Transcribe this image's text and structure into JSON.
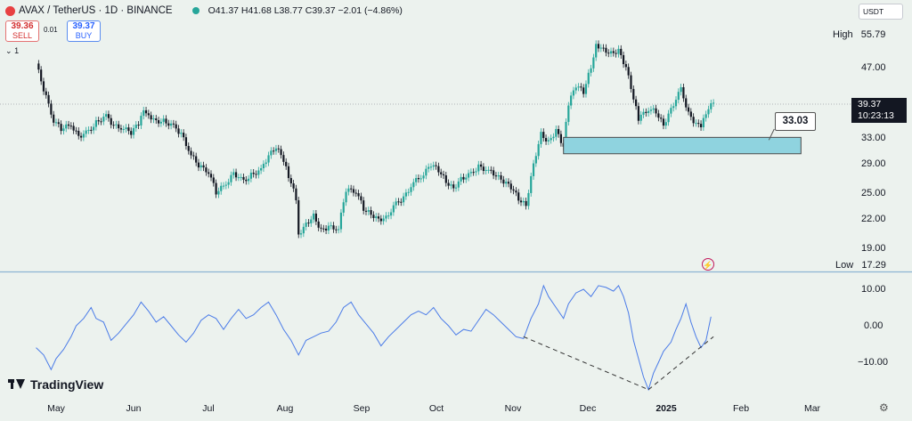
{
  "header": {
    "symbol": "AVAX / TetherUS · 1D · BINANCE",
    "ohlc": "O41.37 H41.68 L38.77 C39.37 −2.01 (−4.86%)",
    "logo": "avax-logo-icon"
  },
  "trade": {
    "sell_price": "39.36",
    "sell_label": "SELL",
    "spread": "0.01",
    "buy_price": "39.37",
    "buy_label": "BUY",
    "indicator_count": "1"
  },
  "currency_label": "USDT",
  "markers": {
    "high_label": "High",
    "high_value": "55.79",
    "low_label": "Low",
    "low_value": "17.29",
    "last_price": "39.37",
    "countdown": "10:23:13",
    "annotation_value": "33.03"
  },
  "branding": {
    "name": "TradingView"
  },
  "chart_data": [
    {
      "type": "candlestick",
      "x_ticks": [
        "May",
        "Jun",
        "Jul",
        "Aug",
        "Sep",
        "Oct",
        "Nov",
        "Dec",
        "2025",
        "Feb",
        "Mar"
      ],
      "y_ticks": [
        "55.79",
        "47.00",
        "33.00",
        "29.00",
        "25.00",
        "22.00",
        "19.00",
        "17.29"
      ],
      "scale": "log",
      "ylim": [
        17.29,
        55.79
      ],
      "colors": {
        "up": "#26a69a",
        "down": "#131722",
        "box": "#8fd3df"
      },
      "close_path": [
        [
          "2024-04-23",
          48.0
        ],
        [
          "2024-04-26",
          42.0
        ],
        [
          "2024-04-30",
          36.0
        ],
        [
          "2024-05-03",
          34.5
        ],
        [
          "2024-05-07",
          35.2
        ],
        [
          "2024-05-10",
          33.2
        ],
        [
          "2024-05-14",
          34.0
        ],
        [
          "2024-05-17",
          35.6
        ],
        [
          "2024-05-21",
          36.8
        ],
        [
          "2024-05-24",
          35.0
        ],
        [
          "2024-05-28",
          34.6
        ],
        [
          "2024-05-31",
          33.8
        ],
        [
          "2024-06-03",
          35.5
        ],
        [
          "2024-06-05",
          38.2
        ],
        [
          "2024-06-07",
          37.0
        ],
        [
          "2024-06-10",
          35.8
        ],
        [
          "2024-06-13",
          35.9
        ],
        [
          "2024-06-17",
          34.9
        ],
        [
          "2024-06-20",
          33.6
        ],
        [
          "2024-06-24",
          30.2
        ],
        [
          "2024-06-27",
          28.6
        ],
        [
          "2024-07-01",
          27.8
        ],
        [
          "2024-07-04",
          25.0
        ],
        [
          "2024-07-08",
          26.1
        ],
        [
          "2024-07-11",
          27.6
        ],
        [
          "2024-07-15",
          26.4
        ],
        [
          "2024-07-18",
          27.3
        ],
        [
          "2024-07-22",
          28.0
        ],
        [
          "2024-07-25",
          30.1
        ],
        [
          "2024-07-28",
          31.4
        ],
        [
          "2024-07-31",
          29.5
        ],
        [
          "2024-08-02",
          27.2
        ],
        [
          "2024-08-05",
          24.2
        ],
        [
          "2024-08-06",
          20.2
        ],
        [
          "2024-08-09",
          21.3
        ],
        [
          "2024-08-12",
          22.2
        ],
        [
          "2024-08-15",
          20.6
        ],
        [
          "2024-08-18",
          21.0
        ],
        [
          "2024-08-22",
          20.8
        ],
        [
          "2024-08-25",
          25.3
        ],
        [
          "2024-08-29",
          25.2
        ],
        [
          "2024-09-01",
          23.0
        ],
        [
          "2024-09-04",
          22.4
        ],
        [
          "2024-09-07",
          21.8
        ],
        [
          "2024-09-10",
          22.0
        ],
        [
          "2024-09-14",
          23.6
        ],
        [
          "2024-09-17",
          24.3
        ],
        [
          "2024-09-21",
          26.3
        ],
        [
          "2024-09-25",
          27.4
        ],
        [
          "2024-09-28",
          28.8
        ],
        [
          "2024-10-01",
          28.0
        ],
        [
          "2024-10-04",
          26.4
        ],
        [
          "2024-10-07",
          25.5
        ],
        [
          "2024-10-10",
          26.8
        ],
        [
          "2024-10-14",
          27.4
        ],
        [
          "2024-10-17",
          28.5
        ],
        [
          "2024-10-21",
          27.9
        ],
        [
          "2024-10-24",
          27.2
        ],
        [
          "2024-10-27",
          26.4
        ],
        [
          "2024-10-30",
          25.7
        ],
        [
          "2024-11-02",
          24.2
        ],
        [
          "2024-11-05",
          23.4
        ],
        [
          "2024-11-08",
          28.8
        ],
        [
          "2024-11-11",
          33.6
        ],
        [
          "2024-11-14",
          32.2
        ],
        [
          "2024-11-17",
          34.2
        ],
        [
          "2024-11-20",
          31.5
        ],
        [
          "2024-11-22",
          39.1
        ],
        [
          "2024-11-25",
          43.0
        ],
        [
          "2024-11-28",
          41.6
        ],
        [
          "2024-12-01",
          47.1
        ],
        [
          "2024-12-03",
          52.9
        ],
        [
          "2024-12-06",
          51.5
        ],
        [
          "2024-12-09",
          50.5
        ],
        [
          "2024-12-12",
          51.2
        ],
        [
          "2024-12-15",
          47.0
        ],
        [
          "2024-12-18",
          40.2
        ],
        [
          "2024-12-20",
          36.3
        ],
        [
          "2024-12-24",
          38.2
        ],
        [
          "2024-12-27",
          37.6
        ],
        [
          "2024-12-30",
          35.1
        ],
        [
          "2025-01-02",
          38.1
        ],
        [
          "2025-01-06",
          42.1
        ],
        [
          "2025-01-09",
          37.2
        ],
        [
          "2025-01-12",
          35.3
        ],
        [
          "2025-01-14",
          34.8
        ],
        [
          "2025-01-17",
          38.4
        ],
        [
          "2025-01-19",
          39.37
        ]
      ],
      "sr_zone": {
        "x_start": "2024-11-20",
        "x_end": "2025-02-23",
        "low": 30.4,
        "high": 33.03
      }
    },
    {
      "type": "line",
      "color": "#4a7be8",
      "x_ticks": [
        "May",
        "Jun",
        "Jul",
        "Aug",
        "Sep",
        "Oct",
        "Nov",
        "Dec",
        "2025",
        "Feb",
        "Mar"
      ],
      "y_ticks": [
        "10.00",
        "0.00",
        "−10.00"
      ],
      "ylim": [
        -19,
        13
      ],
      "series": [
        {
          "values": [
            [
              "2024-04-23",
              -6.0
            ],
            [
              "2024-04-26",
              -8.0
            ],
            [
              "2024-04-29",
              -12.0
            ],
            [
              "2024-05-01",
              -9.0
            ],
            [
              "2024-05-04",
              -6.5
            ],
            [
              "2024-05-07",
              -3.0
            ],
            [
              "2024-05-09",
              0.0
            ],
            [
              "2024-05-12",
              2.0
            ],
            [
              "2024-05-15",
              5.0
            ],
            [
              "2024-05-17",
              2.0
            ],
            [
              "2024-05-20",
              1.0
            ],
            [
              "2024-05-23",
              -4.0
            ],
            [
              "2024-05-26",
              -2.0
            ],
            [
              "2024-05-29",
              0.5
            ],
            [
              "2024-06-01",
              3.0
            ],
            [
              "2024-06-04",
              6.5
            ],
            [
              "2024-06-07",
              4.0
            ],
            [
              "2024-06-10",
              1.0
            ],
            [
              "2024-06-13",
              2.5
            ],
            [
              "2024-06-16",
              0.0
            ],
            [
              "2024-06-19",
              -2.5
            ],
            [
              "2024-06-22",
              -4.5
            ],
            [
              "2024-06-25",
              -2.0
            ],
            [
              "2024-06-28",
              1.5
            ],
            [
              "2024-07-01",
              3.0
            ],
            [
              "2024-07-04",
              2.0
            ],
            [
              "2024-07-07",
              -1.0
            ],
            [
              "2024-07-10",
              2.0
            ],
            [
              "2024-07-13",
              4.5
            ],
            [
              "2024-07-16",
              2.0
            ],
            [
              "2024-07-19",
              3.0
            ],
            [
              "2024-07-22",
              5.0
            ],
            [
              "2024-07-25",
              6.5
            ],
            [
              "2024-07-28",
              3.0
            ],
            [
              "2024-07-31",
              -1.0
            ],
            [
              "2024-08-03",
              -4.0
            ],
            [
              "2024-08-06",
              -8.0
            ],
            [
              "2024-08-09",
              -4.0
            ],
            [
              "2024-08-12",
              -3.0
            ],
            [
              "2024-08-15",
              -2.0
            ],
            [
              "2024-08-18",
              -1.5
            ],
            [
              "2024-08-21",
              1.0
            ],
            [
              "2024-08-24",
              5.0
            ],
            [
              "2024-08-27",
              6.5
            ],
            [
              "2024-08-30",
              3.0
            ],
            [
              "2024-09-02",
              0.5
            ],
            [
              "2024-09-05",
              -2.0
            ],
            [
              "2024-09-08",
              -5.5
            ],
            [
              "2024-09-11",
              -3.0
            ],
            [
              "2024-09-14",
              -1.0
            ],
            [
              "2024-09-17",
              1.0
            ],
            [
              "2024-09-20",
              3.0
            ],
            [
              "2024-09-23",
              4.0
            ],
            [
              "2024-09-26",
              3.0
            ],
            [
              "2024-09-29",
              5.0
            ],
            [
              "2024-10-02",
              2.0
            ],
            [
              "2024-10-05",
              0.0
            ],
            [
              "2024-10-08",
              -2.5
            ],
            [
              "2024-10-11",
              -1.0
            ],
            [
              "2024-10-14",
              -1.5
            ],
            [
              "2024-10-17",
              1.5
            ],
            [
              "2024-10-20",
              4.5
            ],
            [
              "2024-10-23",
              3.0
            ],
            [
              "2024-10-26",
              1.0
            ],
            [
              "2024-10-29",
              -1.0
            ],
            [
              "2024-11-01",
              -3.0
            ],
            [
              "2024-11-04",
              -3.5
            ],
            [
              "2024-11-07",
              2.0
            ],
            [
              "2024-11-10",
              6.0
            ],
            [
              "2024-11-12",
              11.0
            ],
            [
              "2024-11-14",
              8.0
            ],
            [
              "2024-11-17",
              5.0
            ],
            [
              "2024-11-20",
              2.0
            ],
            [
              "2024-11-22",
              6.0
            ],
            [
              "2024-11-25",
              9.0
            ],
            [
              "2024-11-28",
              10.0
            ],
            [
              "2024-12-01",
              8.0
            ],
            [
              "2024-12-04",
              11.0
            ],
            [
              "2024-12-07",
              10.5
            ],
            [
              "2024-12-10",
              9.5
            ],
            [
              "2024-12-12",
              11.0
            ],
            [
              "2024-12-14",
              8.0
            ],
            [
              "2024-12-16",
              3.5
            ],
            [
              "2024-12-18",
              -4.0
            ],
            [
              "2024-12-20",
              -9.0
            ],
            [
              "2024-12-22",
              -14.0
            ],
            [
              "2024-12-24",
              -17.5
            ],
            [
              "2024-12-26",
              -13.0
            ],
            [
              "2024-12-28",
              -10.0
            ],
            [
              "2024-12-30",
              -7.0
            ],
            [
              "2025-01-02",
              -4.5
            ],
            [
              "2025-01-04",
              -1.0
            ],
            [
              "2025-01-06",
              2.0
            ],
            [
              "2025-01-08",
              6.0
            ],
            [
              "2025-01-10",
              1.0
            ],
            [
              "2025-01-12",
              -3.0
            ],
            [
              "2025-01-14",
              -6.0
            ],
            [
              "2025-01-16",
              -4.0
            ],
            [
              "2025-01-18",
              2.5
            ]
          ]
        }
      ],
      "trendlines": [
        [
          [
            "2024-11-04",
            -3.0
          ],
          [
            "2024-12-24",
            -17.5
          ]
        ],
        [
          [
            "2024-12-24",
            -17.5
          ],
          [
            "2025-01-19",
            -3.0
          ]
        ]
      ]
    }
  ]
}
